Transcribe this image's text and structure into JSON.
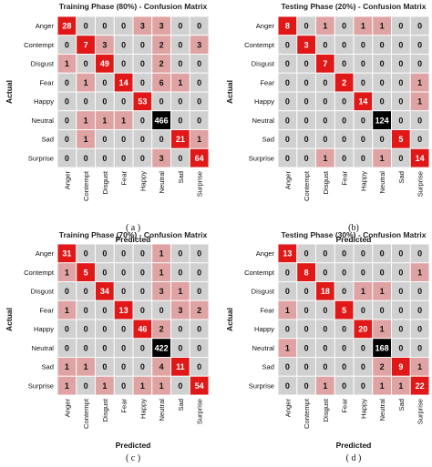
{
  "chart_data": [
    {
      "type": "heatmap",
      "title": "Training Phase (80%) - Confusion Matrix",
      "caption": "( a )",
      "xlabel": "Predicted",
      "ylabel": "Actual",
      "rows": [
        "Anger",
        "Contempt",
        "Disgust",
        "Fear",
        "Happy",
        "Neutral",
        "Sad",
        "Surprise"
      ],
      "cols": [
        "Anger",
        "Contempt",
        "Disgust",
        "Fear",
        "Happy",
        "Neutral",
        "Sad",
        "Surprise"
      ],
      "values": [
        [
          28,
          0,
          0,
          0,
          3,
          3,
          0,
          0
        ],
        [
          0,
          7,
          3,
          0,
          0,
          2,
          0,
          3
        ],
        [
          1,
          0,
          49,
          0,
          0,
          2,
          0,
          0
        ],
        [
          0,
          1,
          0,
          14,
          0,
          6,
          1,
          0
        ],
        [
          0,
          0,
          0,
          0,
          53,
          0,
          0,
          0
        ],
        [
          0,
          1,
          1,
          1,
          0,
          466,
          0,
          0
        ],
        [
          0,
          1,
          0,
          0,
          0,
          0,
          21,
          1
        ],
        [
          0,
          0,
          0,
          0,
          0,
          3,
          0,
          64
        ]
      ]
    },
    {
      "type": "heatmap",
      "title": "Testing Phase (20%) - Confusion Matrix",
      "caption": "(b)",
      "xlabel": "Predicted",
      "ylabel": "Actual",
      "rows": [
        "Anger",
        "Contempt",
        "Disgust",
        "Fear",
        "Happy",
        "Neutral",
        "Sad",
        "Surprise"
      ],
      "cols": [
        "Anger",
        "Contempt",
        "Disgust",
        "Fear",
        "Happy",
        "Neutral",
        "Sad",
        "Surprise"
      ],
      "values": [
        [
          8,
          0,
          1,
          0,
          1,
          1,
          0,
          0
        ],
        [
          0,
          3,
          0,
          0,
          0,
          0,
          0,
          0
        ],
        [
          0,
          0,
          7,
          0,
          0,
          0,
          0,
          0
        ],
        [
          0,
          0,
          0,
          2,
          0,
          0,
          0,
          1
        ],
        [
          0,
          0,
          0,
          0,
          14,
          0,
          0,
          1
        ],
        [
          0,
          0,
          0,
          0,
          0,
          124,
          0,
          0
        ],
        [
          0,
          0,
          0,
          0,
          0,
          0,
          5,
          0
        ],
        [
          0,
          0,
          1,
          0,
          0,
          1,
          0,
          14
        ]
      ]
    },
    {
      "type": "heatmap",
      "title": "Training Phase (70%) - Confusion Matrix",
      "caption": "( c )",
      "xlabel": "Predicted",
      "ylabel": "Actual",
      "rows": [
        "Anger",
        "Contempt",
        "Disgust",
        "Fear",
        "Happy",
        "Neutral",
        "Sad",
        "Surprise"
      ],
      "cols": [
        "Anger",
        "Contempt",
        "Disgust",
        "Fear",
        "Happy",
        "Neutral",
        "Sad",
        "Surprise"
      ],
      "values": [
        [
          31,
          0,
          0,
          0,
          0,
          1,
          0,
          0
        ],
        [
          1,
          5,
          0,
          0,
          0,
          1,
          0,
          0
        ],
        [
          0,
          0,
          34,
          0,
          0,
          3,
          1,
          0
        ],
        [
          1,
          0,
          0,
          13,
          0,
          0,
          3,
          2
        ],
        [
          0,
          0,
          0,
          0,
          46,
          2,
          0,
          0
        ],
        [
          0,
          0,
          0,
          0,
          0,
          422,
          0,
          0
        ],
        [
          1,
          1,
          0,
          0,
          0,
          4,
          11,
          0
        ],
        [
          1,
          0,
          1,
          0,
          1,
          1,
          0,
          54
        ]
      ]
    },
    {
      "type": "heatmap",
      "title": "Testing Phase (30%) - Confusion Matrix",
      "caption": "( d )",
      "xlabel": "Predicted",
      "ylabel": "Actual",
      "rows": [
        "Anger",
        "Contempt",
        "Disgust",
        "Fear",
        "Happy",
        "Neutral",
        "Sad",
        "Surprise"
      ],
      "cols": [
        "Anger",
        "Contempt",
        "Disgust",
        "Fear",
        "Happy",
        "Neutral",
        "Sad",
        "Surprise"
      ],
      "values": [
        [
          13,
          0,
          0,
          0,
          0,
          0,
          0,
          0
        ],
        [
          0,
          8,
          0,
          0,
          0,
          0,
          0,
          1
        ],
        [
          0,
          0,
          18,
          0,
          1,
          1,
          0,
          0
        ],
        [
          1,
          0,
          0,
          5,
          0,
          0,
          0,
          0
        ],
        [
          0,
          0,
          0,
          0,
          20,
          1,
          0,
          0
        ],
        [
          1,
          0,
          0,
          0,
          0,
          168,
          0,
          0
        ],
        [
          0,
          0,
          0,
          0,
          0,
          2,
          9,
          1
        ],
        [
          0,
          0,
          1,
          0,
          0,
          1,
          1,
          22
        ]
      ]
    }
  ],
  "colors": {
    "zero_cell": "#d0d0d0",
    "light_red": "#dfa3a3",
    "red": "#e01818",
    "max_cell": "#000000",
    "grid_line": "#ffffff",
    "text_dark": "#111111",
    "text_light": "#ffffff"
  }
}
